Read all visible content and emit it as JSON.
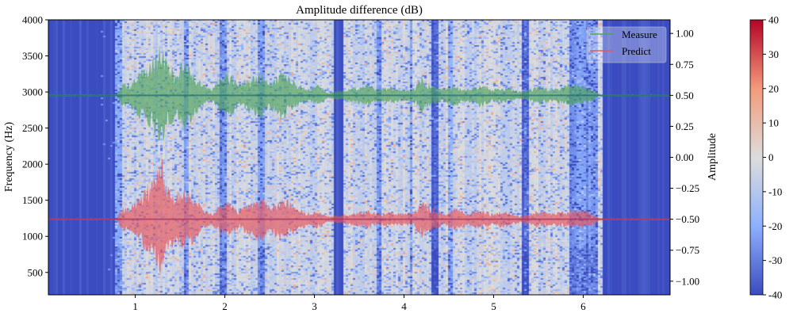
{
  "chart_data": {
    "type": "heatmap",
    "title": "Amplitude difference (dB)",
    "xlabel": "",
    "ylabel": "Frequency (Hz)",
    "ylabel_right": "Amplitude",
    "xlim": [
      0.03,
      6.97
    ],
    "ylim": [
      190,
      4000
    ],
    "ylim_right": [
      -1.11,
      1.11
    ],
    "x_ticks": [
      1,
      2,
      3,
      4,
      5,
      6
    ],
    "y_ticks": [
      500,
      1000,
      1500,
      2000,
      2500,
      3000,
      3500,
      4000
    ],
    "y_ticks_right": [
      "−1.00",
      "−0.75",
      "−0.50",
      "−0.25",
      "0.00",
      "0.25",
      "0.50",
      "0.75",
      "1.00"
    ],
    "y_ticks_right_values": [
      -1,
      -0.75,
      -0.5,
      -0.25,
      0,
      0.25,
      0.5,
      0.75,
      1
    ],
    "colorbar": {
      "min": -40,
      "max": 40,
      "ticks": [
        -40,
        -30,
        -20,
        -10,
        0,
        10,
        20,
        30,
        40
      ],
      "colormap": [
        "#3b4cc0",
        "#8db0fe",
        "#dddddd",
        "#f49a7b",
        "#b40426"
      ]
    },
    "heatmap_regions": [
      {
        "t": [
          0.03,
          0.78
        ],
        "mean_db": -40
      },
      {
        "t": [
          0.78,
          0.85
        ],
        "mean_db": -20
      },
      {
        "t": [
          0.85,
          6.2
        ],
        "mean_db": -4
      },
      {
        "t": [
          1.55,
          1.6
        ],
        "mean_db": -20
      },
      {
        "t": [
          1.93,
          2.02
        ],
        "mean_db": -25
      },
      {
        "t": [
          2.35,
          2.45
        ],
        "mean_db": -20
      },
      {
        "t": [
          3.2,
          3.33
        ],
        "mean_db": -40
      },
      {
        "t": [
          3.68,
          3.74
        ],
        "mean_db": -22
      },
      {
        "t": [
          4.05,
          4.1
        ],
        "mean_db": -24
      },
      {
        "t": [
          4.3,
          4.38
        ],
        "mean_db": -36
      },
      {
        "t": [
          4.5,
          4.55
        ],
        "mean_db": -20
      },
      {
        "t": [
          5.3,
          5.38
        ],
        "mean_db": -32
      },
      {
        "t": [
          5.85,
          6.15
        ],
        "mean_db": -24
      },
      {
        "t": [
          6.2,
          6.97
        ],
        "mean_db": -40
      }
    ],
    "series": [
      {
        "name": "Measure",
        "color": "#4ea35a",
        "offset": 0.5,
        "envelope_t": [
          0.8,
          0.85,
          0.95,
          1.05,
          1.15,
          1.22,
          1.3,
          1.35,
          1.45,
          1.55,
          1.65,
          1.75,
          1.85,
          1.95,
          2.05,
          2.15,
          2.3,
          2.4,
          2.5,
          2.6,
          2.65,
          2.8,
          2.95,
          3.05,
          3.15,
          3.5,
          3.6,
          3.7,
          3.85,
          3.95,
          4.1,
          4.2,
          4.3,
          4.45,
          4.55,
          4.7,
          4.85,
          5.0,
          5.1,
          5.3,
          5.5,
          5.65,
          5.85,
          6.0,
          6.1,
          6.2
        ],
        "envelope": [
          0.02,
          0.1,
          0.1,
          0.2,
          0.25,
          0.35,
          0.5,
          0.3,
          0.2,
          0.3,
          0.2,
          0.1,
          0.05,
          0.15,
          0.2,
          0.1,
          0.15,
          0.2,
          0.1,
          0.2,
          0.2,
          0.1,
          0.05,
          0.1,
          0.02,
          0.08,
          0.1,
          0.05,
          0.08,
          0.05,
          0.05,
          0.15,
          0.1,
          0.05,
          0.1,
          0.05,
          0.1,
          0.05,
          0.08,
          0.03,
          0.08,
          0.05,
          0.1,
          0.08,
          0.05,
          0.0
        ]
      },
      {
        "name": "Predict",
        "color": "#e8545a",
        "offset": -0.5,
        "envelope_t": [
          0.8,
          0.85,
          0.95,
          1.05,
          1.15,
          1.22,
          1.3,
          1.35,
          1.45,
          1.55,
          1.65,
          1.75,
          1.85,
          1.95,
          2.05,
          2.15,
          2.3,
          2.4,
          2.5,
          2.6,
          2.65,
          2.8,
          2.95,
          3.05,
          3.15,
          3.5,
          3.6,
          3.7,
          3.85,
          3.95,
          4.1,
          4.2,
          4.3,
          4.45,
          4.55,
          4.7,
          4.85,
          5.0,
          5.1,
          5.3,
          5.5,
          5.65,
          5.85,
          6.0,
          6.1,
          6.2
        ],
        "envelope": [
          0.02,
          0.1,
          0.1,
          0.2,
          0.3,
          0.35,
          0.5,
          0.3,
          0.2,
          0.25,
          0.2,
          0.1,
          0.05,
          0.12,
          0.15,
          0.08,
          0.15,
          0.22,
          0.1,
          0.18,
          0.2,
          0.1,
          0.05,
          0.08,
          0.02,
          0.06,
          0.08,
          0.05,
          0.06,
          0.05,
          0.05,
          0.15,
          0.1,
          0.05,
          0.1,
          0.05,
          0.08,
          0.05,
          0.07,
          0.03,
          0.07,
          0.05,
          0.08,
          0.08,
          0.05,
          0.0
        ]
      }
    ],
    "legend": {
      "position": "top-right",
      "entries": [
        "Measure",
        "Predict"
      ]
    }
  }
}
